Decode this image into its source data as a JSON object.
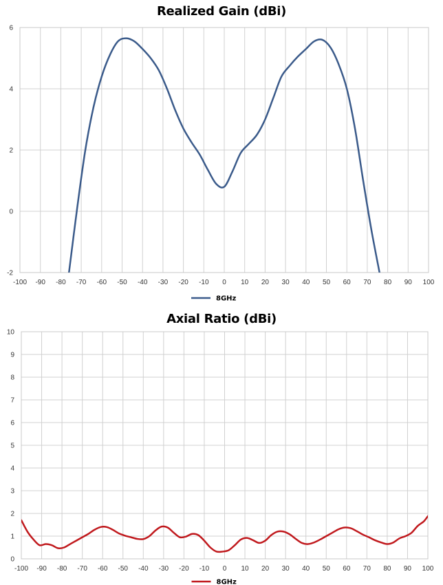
{
  "chart_data": [
    {
      "type": "line",
      "title": "Realized Gain (dBi)",
      "xlabel": "",
      "ylabel": "",
      "xlim": [
        -100,
        100
      ],
      "ylim": [
        -2,
        6
      ],
      "xticks": [
        -100,
        -90,
        -80,
        -70,
        -60,
        -50,
        -40,
        -30,
        -20,
        -10,
        0,
        10,
        20,
        30,
        40,
        50,
        60,
        70,
        80,
        90,
        100
      ],
      "yticks": [
        -2,
        0,
        2,
        4,
        6
      ],
      "grid": true,
      "legend": "bottom",
      "series": [
        {
          "name": "8GHz",
          "color": "#3A5A8A",
          "x": [
            -76,
            -72,
            -68,
            -64,
            -60,
            -56,
            -52,
            -48,
            -44,
            -40,
            -36,
            -32,
            -28,
            -24,
            -20,
            -16,
            -12,
            -8,
            -4,
            0,
            4,
            8,
            12,
            16,
            20,
            24,
            28,
            32,
            36,
            40,
            44,
            48,
            52,
            56,
            60,
            64,
            68,
            72,
            76
          ],
          "y": [
            -2.0,
            0.1,
            2.0,
            3.4,
            4.4,
            5.1,
            5.55,
            5.65,
            5.55,
            5.3,
            5.0,
            4.6,
            4.0,
            3.3,
            2.7,
            2.25,
            1.85,
            1.35,
            0.9,
            0.8,
            1.3,
            1.9,
            2.2,
            2.5,
            3.0,
            3.7,
            4.4,
            4.75,
            5.05,
            5.3,
            5.55,
            5.6,
            5.35,
            4.8,
            4.0,
            2.7,
            1.0,
            -0.6,
            -2.0
          ]
        }
      ]
    },
    {
      "type": "line",
      "title": "Axial Ratio (dBi)",
      "xlabel": "",
      "ylabel": "",
      "xlim": [
        -100,
        100
      ],
      "ylim": [
        0,
        10
      ],
      "xticks": [
        -100,
        -90,
        -80,
        -70,
        -60,
        -50,
        -40,
        -30,
        -20,
        -10,
        0,
        10,
        20,
        30,
        40,
        50,
        60,
        70,
        80,
        90,
        100
      ],
      "yticks": [
        0,
        1,
        2,
        3,
        4,
        5,
        6,
        7,
        8,
        9,
        10
      ],
      "grid": true,
      "legend": "bottom",
      "series": [
        {
          "name": "8GHz",
          "color": "#C0181C",
          "x": [
            -100,
            -97,
            -94,
            -91,
            -88,
            -85,
            -82,
            -79,
            -76,
            -73,
            -70,
            -67,
            -64,
            -61,
            -58,
            -55,
            -52,
            -49,
            -46,
            -43,
            -40,
            -37,
            -34,
            -31,
            -28,
            -25,
            -22,
            -19,
            -16,
            -13,
            -10,
            -7,
            -4,
            -1,
            2,
            5,
            8,
            11,
            14,
            17,
            20,
            23,
            26,
            29,
            32,
            35,
            38,
            41,
            44,
            47,
            50,
            53,
            56,
            59,
            62,
            65,
            68,
            71,
            74,
            77,
            80,
            83,
            86,
            89,
            92,
            95,
            98,
            100
          ],
          "y": [
            1.7,
            1.2,
            0.85,
            0.6,
            0.65,
            0.6,
            0.47,
            0.5,
            0.65,
            0.8,
            0.95,
            1.1,
            1.28,
            1.4,
            1.4,
            1.28,
            1.12,
            1.02,
            0.95,
            0.88,
            0.87,
            1.0,
            1.25,
            1.42,
            1.38,
            1.15,
            0.95,
            0.98,
            1.1,
            1.05,
            0.8,
            0.5,
            0.32,
            0.32,
            0.38,
            0.6,
            0.85,
            0.92,
            0.82,
            0.7,
            0.8,
            1.05,
            1.2,
            1.2,
            1.08,
            0.88,
            0.7,
            0.65,
            0.72,
            0.85,
            1.0,
            1.15,
            1.3,
            1.38,
            1.35,
            1.22,
            1.07,
            0.95,
            0.82,
            0.72,
            0.65,
            0.72,
            0.9,
            1.0,
            1.15,
            1.45,
            1.65,
            1.88
          ]
        }
      ]
    }
  ]
}
